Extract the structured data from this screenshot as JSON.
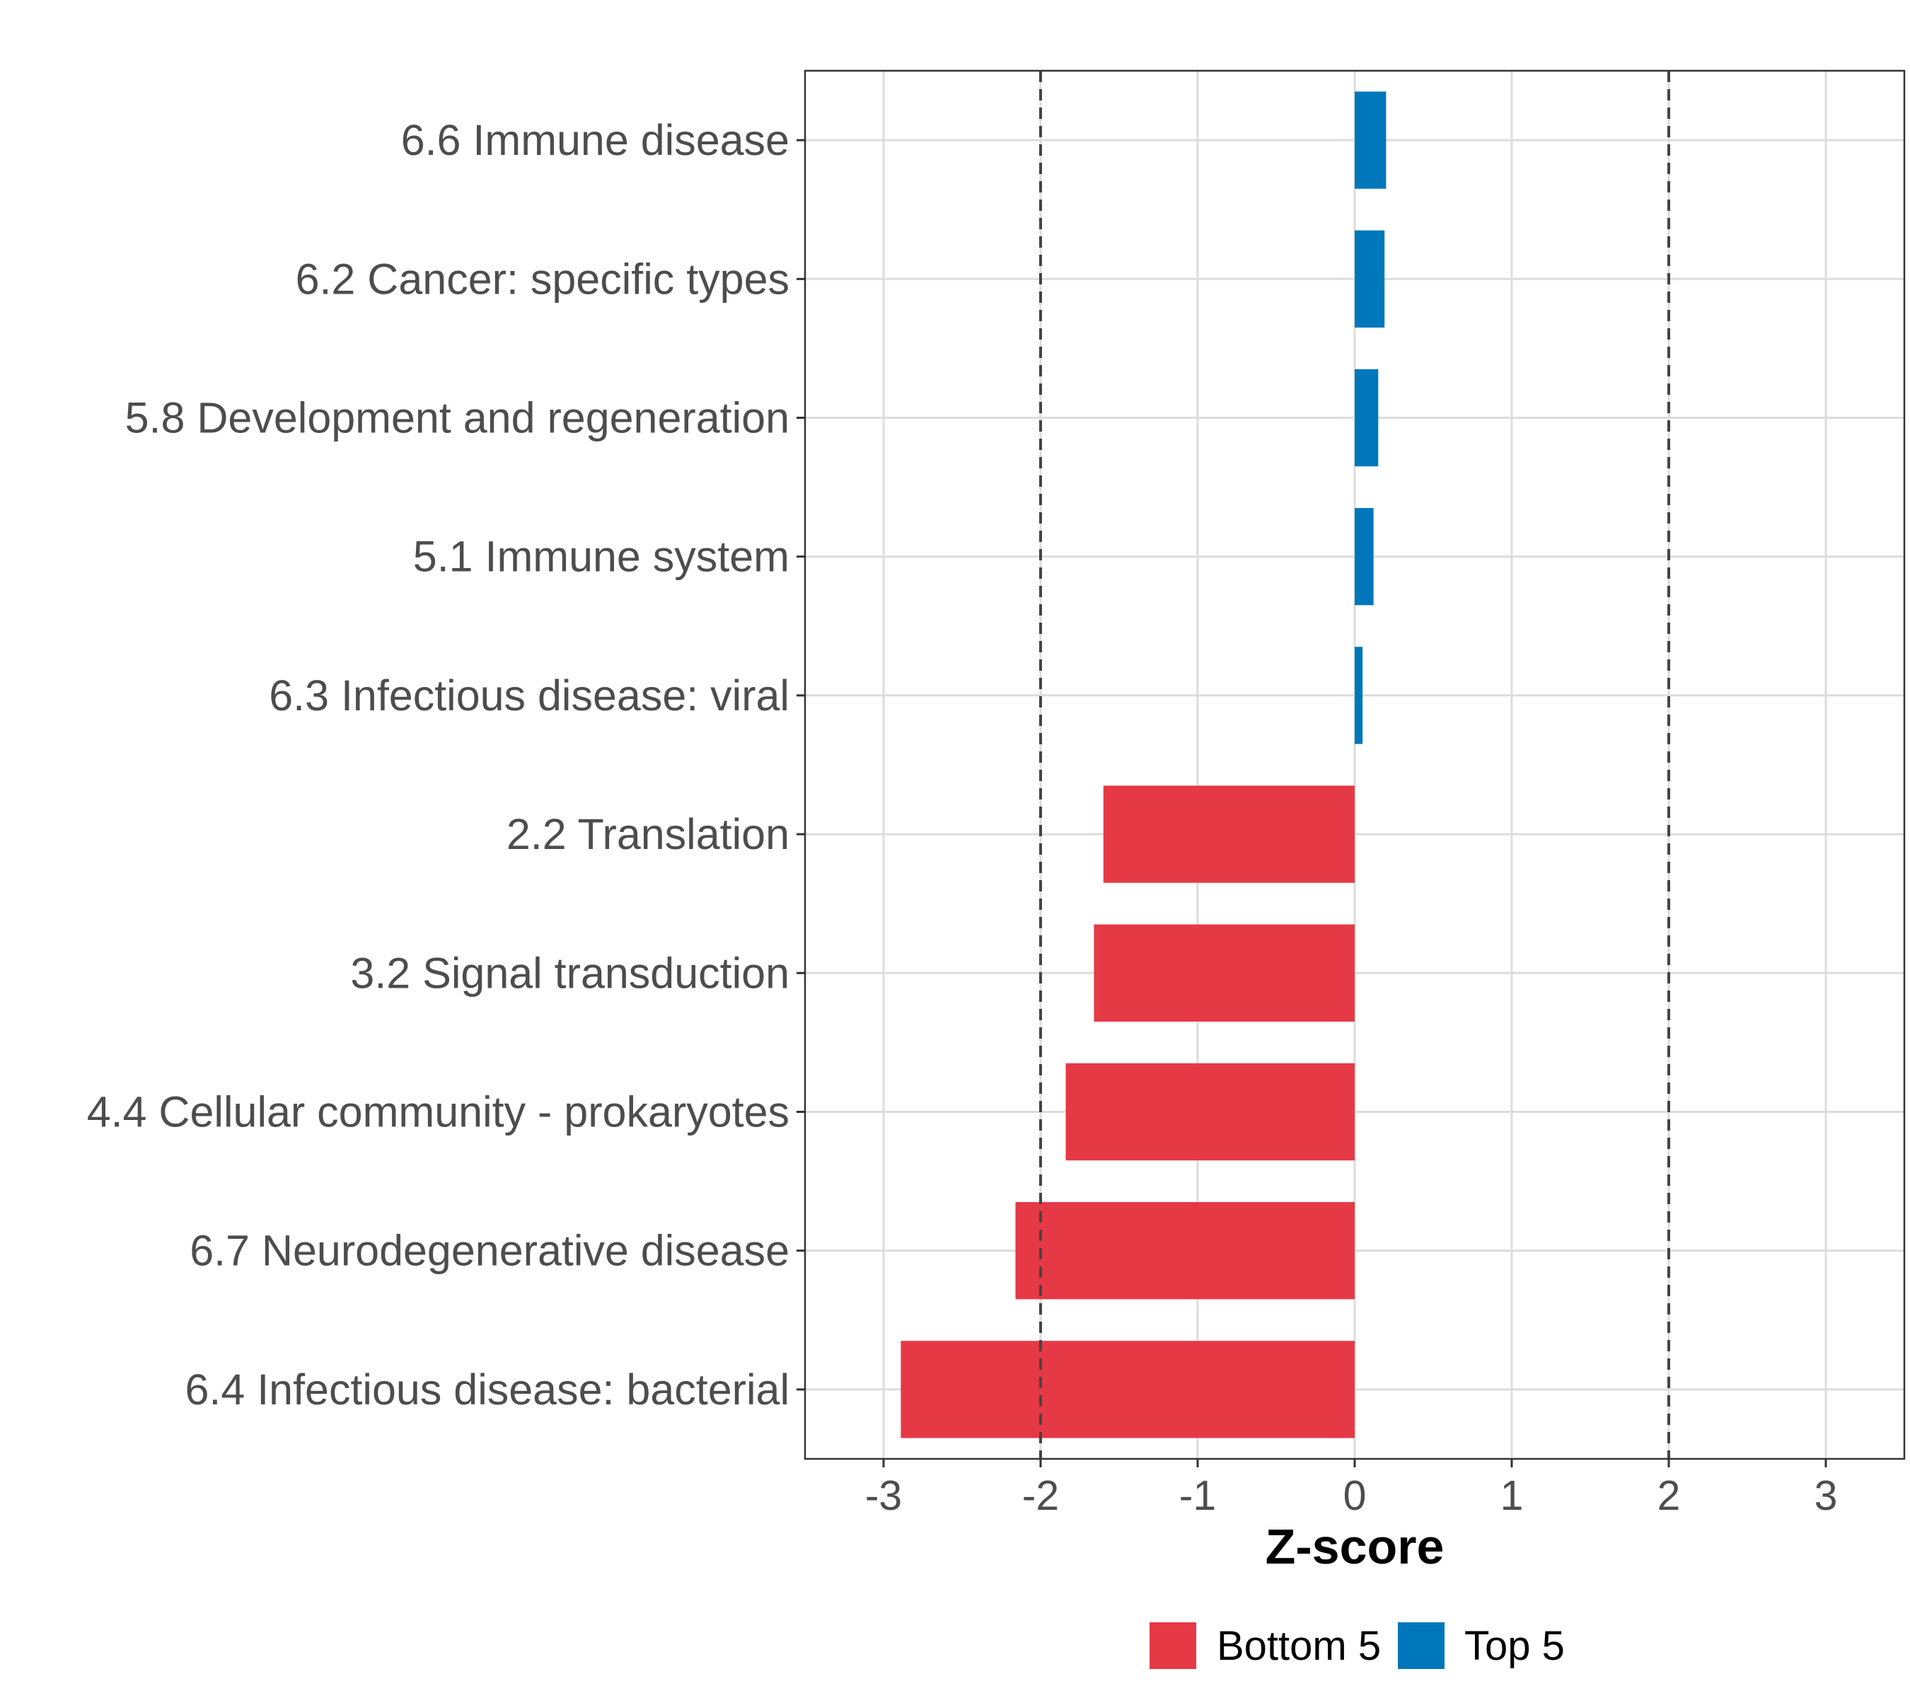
{
  "chart_data": {
    "type": "bar",
    "orientation": "horizontal",
    "title": "",
    "xlabel": "Z-score",
    "ylabel": "",
    "xlim": [
      -3.5,
      3.5
    ],
    "xticks": [
      -3,
      -2,
      -1,
      0,
      1,
      2,
      3
    ],
    "xtick_labels": [
      "-3",
      "-2",
      "-1",
      "0",
      "1",
      "2",
      "3"
    ],
    "reference_lines": [
      -2,
      2
    ],
    "grid": true,
    "legend_position": "bottom",
    "categories": [
      "6.6 Immune disease",
      "6.2 Cancer: specific types",
      "5.8 Development and regeneration",
      "5.1 Immune system",
      "6.3 Infectious disease: viral",
      "2.2 Translation",
      "3.2 Signal transduction",
      "4.4 Cellular community - prokaryotes",
      "6.7 Neurodegenerative disease",
      "6.4 Infectious disease: bacterial"
    ],
    "values": [
      0.2,
      0.19,
      0.15,
      0.12,
      0.05,
      -1.6,
      -1.66,
      -1.84,
      -2.16,
      -2.89
    ],
    "groups": [
      "Top 5",
      "Top 5",
      "Top 5",
      "Top 5",
      "Top 5",
      "Bottom 5",
      "Bottom 5",
      "Bottom 5",
      "Bottom 5",
      "Bottom 5"
    ],
    "legend": [
      {
        "label": "Bottom 5",
        "color": "#E63946"
      },
      {
        "label": "Top 5",
        "color": "#0077BB"
      }
    ]
  }
}
